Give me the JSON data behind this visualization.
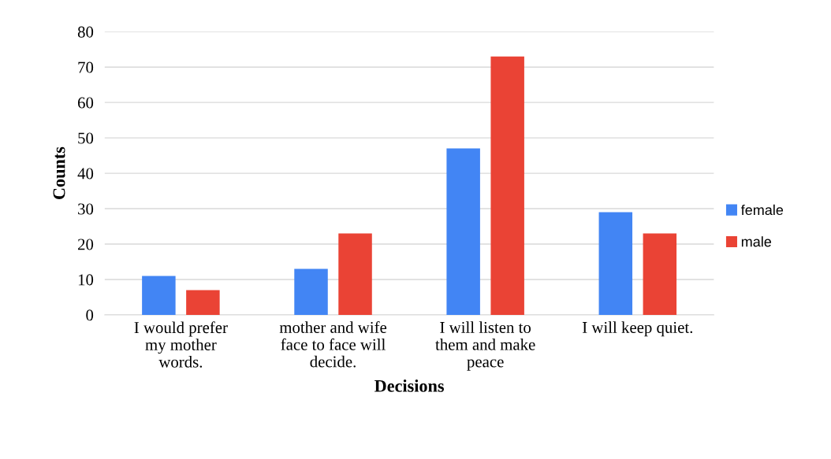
{
  "chart_data": {
    "type": "bar",
    "xlabel": "Decisions",
    "ylabel": "Counts",
    "categories": [
      "I would prefer\nmy mother\nwords.",
      "mother and wife\nface to face will\ndecide.",
      "I will listen to\nthem and make\npeace",
      "I will keep quiet."
    ],
    "series": [
      {
        "name": "female",
        "color": "#4285f4",
        "values": [
          11,
          13,
          47,
          29
        ]
      },
      {
        "name": "male",
        "color": "#ea4335",
        "values": [
          7,
          23,
          73,
          23
        ]
      }
    ],
    "ylim": [
      0,
      80
    ],
    "yticks": [
      0,
      10,
      20,
      30,
      40,
      50,
      60,
      70,
      80
    ],
    "grid": "y",
    "legend": "right"
  }
}
